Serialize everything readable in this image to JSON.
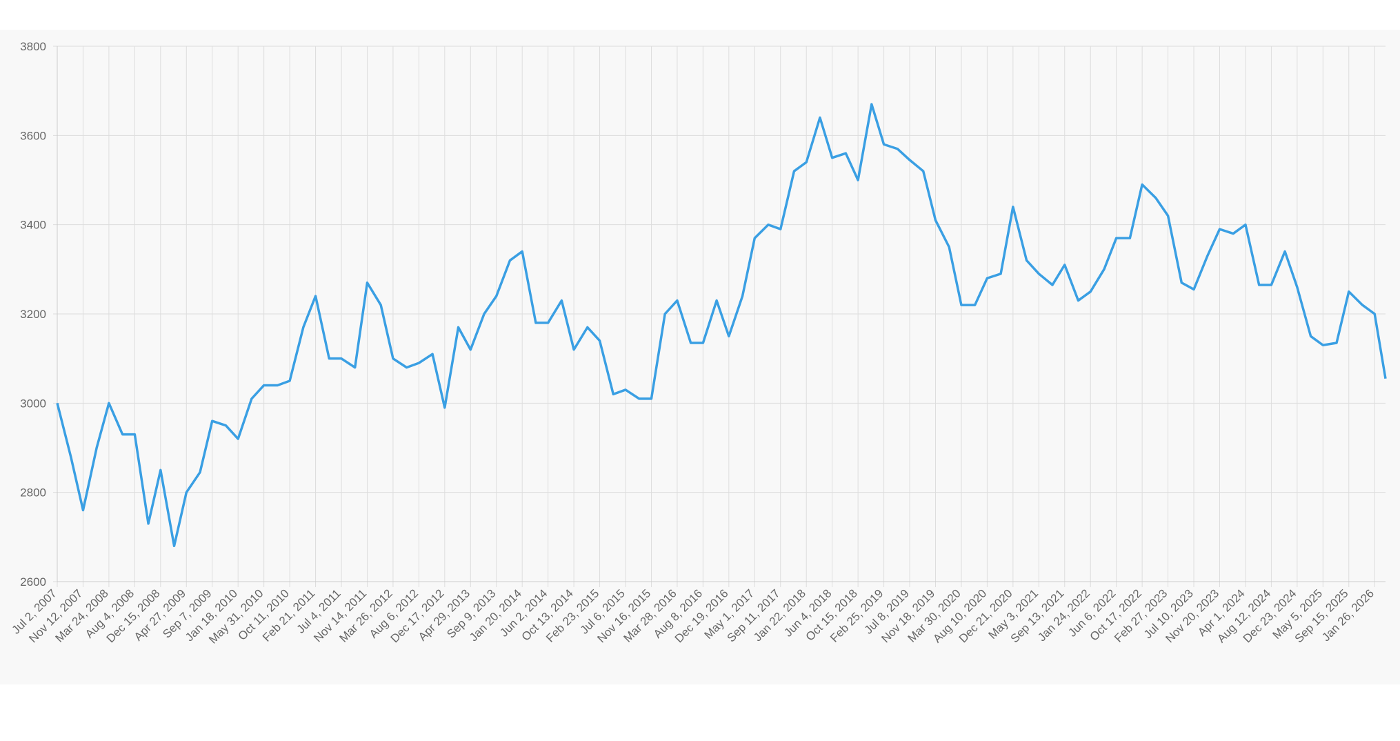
{
  "chart_data": {
    "type": "line",
    "x": [
      "2007-07-02",
      "2007-09-10",
      "2007-11-12",
      "2008-01-21",
      "2008-03-24",
      "2008-06-02",
      "2008-08-04",
      "2008-10-13",
      "2008-12-15",
      "2009-02-23",
      "2009-04-27",
      "2009-07-06",
      "2009-09-07",
      "2009-11-16",
      "2010-01-18",
      "2010-03-29",
      "2010-05-31",
      "2010-08-09",
      "2010-10-11",
      "2010-12-20",
      "2011-02-21",
      "2011-05-02",
      "2011-07-04",
      "2011-09-12",
      "2011-11-14",
      "2012-01-23",
      "2012-03-26",
      "2012-06-04",
      "2012-08-06",
      "2012-10-15",
      "2012-12-17",
      "2013-02-25",
      "2013-04-29",
      "2013-07-08",
      "2013-09-09",
      "2013-11-18",
      "2014-01-20",
      "2014-03-31",
      "2014-06-02",
      "2014-08-11",
      "2014-10-13",
      "2014-12-22",
      "2015-02-23",
      "2015-05-04",
      "2015-07-06",
      "2015-09-14",
      "2015-11-16",
      "2016-01-25",
      "2016-03-28",
      "2016-06-06",
      "2016-08-08",
      "2016-10-17",
      "2016-12-19",
      "2017-02-27",
      "2017-05-01",
      "2017-07-10",
      "2017-09-11",
      "2017-11-20",
      "2018-01-22",
      "2018-04-02",
      "2018-06-04",
      "2018-08-13",
      "2018-10-15",
      "2018-12-24",
      "2019-02-25",
      "2019-05-06",
      "2019-07-08",
      "2019-09-16",
      "2019-11-18",
      "2020-01-27",
      "2020-03-30",
      "2020-06-08",
      "2020-08-10",
      "2020-10-19",
      "2020-12-21",
      "2021-03-01",
      "2021-05-03",
      "2021-07-12",
      "2021-09-13",
      "2021-11-22",
      "2022-01-24",
      "2022-04-04",
      "2022-06-06",
      "2022-08-15",
      "2022-10-17",
      "2022-12-26",
      "2023-02-27",
      "2023-05-08",
      "2023-07-10",
      "2023-09-18",
      "2023-11-20",
      "2024-01-29",
      "2024-04-01",
      "2024-06-10",
      "2024-08-12",
      "2024-10-21",
      "2024-12-23",
      "2025-03-03",
      "2025-05-05",
      "2025-07-14",
      "2025-09-15",
      "2025-11-24",
      "2026-01-26",
      "2026-03-23"
    ],
    "series": [
      {
        "color": "#3a9fe3",
        "values": [
          3000,
          2880,
          2760,
          2900,
          3000,
          2930,
          2930,
          2730,
          2850,
          2680,
          2800,
          2845,
          2960,
          2950,
          2920,
          3010,
          3040,
          3040,
          3050,
          3170,
          3240,
          3100,
          3100,
          3080,
          3270,
          3220,
          3100,
          3080,
          3090,
          3110,
          2990,
          3170,
          3120,
          3200,
          3240,
          3320,
          3340,
          3180,
          3180,
          3230,
          3120,
          3170,
          3140,
          3020,
          3030,
          3010,
          3010,
          3200,
          3230,
          3135,
          3135,
          3230,
          3150,
          3240,
          3370,
          3400,
          3390,
          3520,
          3540,
          3640,
          3550,
          3560,
          3500,
          3670,
          3580,
          3570,
          3545,
          3520,
          3410,
          3350,
          3220,
          3220,
          3280,
          3290,
          3440,
          3320,
          3290,
          3265,
          3310,
          3230,
          3250,
          3300,
          3370,
          3370,
          3490,
          3460,
          3420,
          3270,
          3255,
          3330,
          3390,
          3380,
          3400,
          3265,
          3265,
          3340,
          3260,
          3150,
          3130,
          3135,
          3250,
          3220,
          3200,
          3055
        ]
      }
    ],
    "xlim": [
      "2007-07-02",
      "2026-03-23"
    ],
    "xticks": [
      {
        "value": "2007-07-02",
        "label": "Jul 2, 2007"
      },
      {
        "value": "2007-11-12",
        "label": "Nov 12, 2007"
      },
      {
        "value": "2008-03-24",
        "label": "Mar 24, 2008"
      },
      {
        "value": "2008-08-04",
        "label": "Aug 4, 2008"
      },
      {
        "value": "2008-12-15",
        "label": "Dec 15, 2008"
      },
      {
        "value": "2009-04-27",
        "label": "Apr 27, 2009"
      },
      {
        "value": "2009-09-07",
        "label": "Sep 7, 2009"
      },
      {
        "value": "2010-01-18",
        "label": "Jan 18, 2010"
      },
      {
        "value": "2010-05-31",
        "label": "May 31, 2010"
      },
      {
        "value": "2010-10-11",
        "label": "Oct 11, 2010"
      },
      {
        "value": "2011-02-21",
        "label": "Feb 21, 2011"
      },
      {
        "value": "2011-07-04",
        "label": "Jul 4, 2011"
      },
      {
        "value": "2011-11-14",
        "label": "Nov 14, 2011"
      },
      {
        "value": "2012-03-26",
        "label": "Mar 26, 2012"
      },
      {
        "value": "2012-08-06",
        "label": "Aug 6, 2012"
      },
      {
        "value": "2012-12-17",
        "label": "Dec 17, 2012"
      },
      {
        "value": "2013-04-29",
        "label": "Apr 29, 2013"
      },
      {
        "value": "2013-09-09",
        "label": "Sep 9, 2013"
      },
      {
        "value": "2014-01-20",
        "label": "Jan 20, 2014"
      },
      {
        "value": "2014-06-02",
        "label": "Jun 2, 2014"
      },
      {
        "value": "2014-10-13",
        "label": "Oct 13, 2014"
      },
      {
        "value": "2015-02-23",
        "label": "Feb 23, 2015"
      },
      {
        "value": "2015-07-06",
        "label": "Jul 6, 2015"
      },
      {
        "value": "2015-11-16",
        "label": "Nov 16, 2015"
      },
      {
        "value": "2016-03-28",
        "label": "Mar 28, 2016"
      },
      {
        "value": "2016-08-08",
        "label": "Aug 8, 2016"
      },
      {
        "value": "2016-12-19",
        "label": "Dec 19, 2016"
      },
      {
        "value": "2017-05-01",
        "label": "May 1, 2017"
      },
      {
        "value": "2017-09-11",
        "label": "Sep 11, 2017"
      },
      {
        "value": "2018-01-22",
        "label": "Jan 22, 2018"
      },
      {
        "value": "2018-06-04",
        "label": "Jun 4, 2018"
      },
      {
        "value": "2018-10-15",
        "label": "Oct 15, 2018"
      },
      {
        "value": "2019-02-25",
        "label": "Feb 25, 2019"
      },
      {
        "value": "2019-07-08",
        "label": "Jul 8, 2019"
      },
      {
        "value": "2019-11-18",
        "label": "Nov 18, 2019"
      },
      {
        "value": "2020-03-30",
        "label": "Mar 30, 2020"
      },
      {
        "value": "2020-08-10",
        "label": "Aug 10, 2020"
      },
      {
        "value": "2020-12-21",
        "label": "Dec 21, 2020"
      },
      {
        "value": "2021-05-03",
        "label": "May 3, 2021"
      },
      {
        "value": "2021-09-13",
        "label": "Sep 13, 2021"
      },
      {
        "value": "2022-01-24",
        "label": "Jan 24, 2022"
      },
      {
        "value": "2022-06-06",
        "label": "Jun 6, 2022"
      },
      {
        "value": "2022-10-17",
        "label": "Oct 17, 2022"
      },
      {
        "value": "2023-02-27",
        "label": "Feb 27, 2023"
      },
      {
        "value": "2023-07-10",
        "label": "Jul 10, 2023"
      },
      {
        "value": "2023-11-20",
        "label": "Nov 20, 2023"
      },
      {
        "value": "2024-04-01",
        "label": "Apr 1, 2024"
      },
      {
        "value": "2024-08-12",
        "label": "Aug 12, 2024"
      },
      {
        "value": "2024-12-23",
        "label": "Dec 23, 2024"
      },
      {
        "value": "2025-05-05",
        "label": "May 5, 2025"
      },
      {
        "value": "2025-09-15",
        "label": "Sep 15, 2025"
      },
      {
        "value": "2026-01-26",
        "label": "Jan 26, 2026"
      }
    ],
    "ylim": [
      2600,
      3800
    ],
    "yticks": [
      2600,
      2800,
      3000,
      3200,
      3400,
      3600,
      3800
    ],
    "grid": true
  }
}
